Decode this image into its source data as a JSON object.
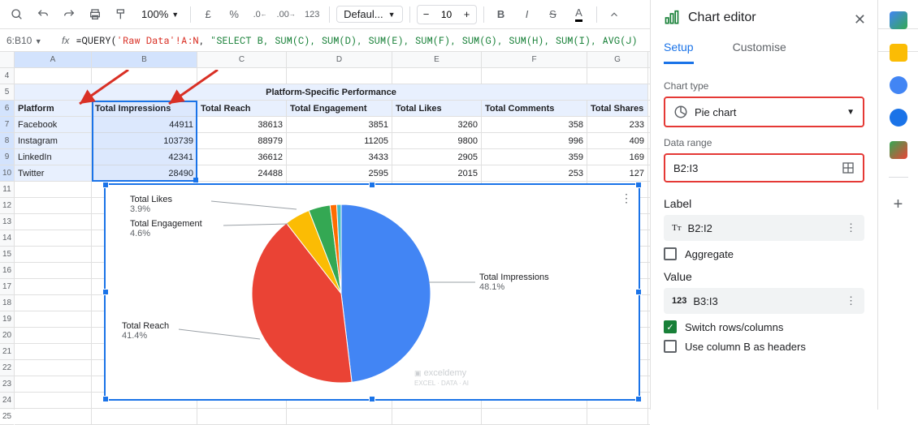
{
  "toolbar": {
    "zoom": "100%",
    "currency": "£",
    "percent": "%",
    "font": "Defaul...",
    "size": "10",
    "bold": "B",
    "italic": "I",
    "strike": "S",
    "textcolor": "A"
  },
  "fx": {
    "cell_ref": "6:B10",
    "fn": "=QUERY(",
    "ref": "'Raw Data'!A:N",
    "sep": ", ",
    "sql": "\"SELECT B, SUM(C), SUM(D), SUM(E), SUM(F), SUM(G), SUM(H), SUM(I), AVG(J)"
  },
  "cols": {
    "labels": [
      "A",
      "B",
      "C",
      "D",
      "E",
      "F",
      "G"
    ],
    "widths": [
      95,
      130,
      110,
      130,
      110,
      130,
      75
    ]
  },
  "rows": {
    "start": 4,
    "count": 22,
    "selected": [
      6,
      7,
      8,
      9,
      10
    ]
  },
  "table": {
    "title": "Platform-Specific Performance",
    "headers": [
      "Platform",
      "Total Impressions",
      "Total Reach",
      "Total Engagement",
      "Total Likes",
      "Total Comments",
      "Total Shares"
    ],
    "data": [
      [
        "Facebook",
        "44911",
        "38613",
        "3851",
        "3260",
        "358",
        "233"
      ],
      [
        "Instagram",
        "103739",
        "88979",
        "11205",
        "9800",
        "996",
        "409"
      ],
      [
        "LinkedIn",
        "42341",
        "36612",
        "3433",
        "2905",
        "359",
        "169"
      ],
      [
        "Twitter",
        "28490",
        "24488",
        "2595",
        "2015",
        "253",
        "127"
      ]
    ]
  },
  "chart": {
    "labels": {
      "likes": {
        "t": "Total Likes",
        "p": "3.9%"
      },
      "engagement": {
        "t": "Total Engagement",
        "p": "4.6%"
      },
      "impressions": {
        "t": "Total Impressions",
        "p": "48.1%"
      },
      "reach": {
        "t": "Total Reach",
        "p": "41.4%"
      }
    },
    "colors": {
      "impressions": "#4285f4",
      "reach": "#ea4335",
      "engagement": "#fbbc04",
      "likes": "#34a853",
      "comments": "#ff6d01",
      "shares": "#46bdc6"
    },
    "watermark": "exceldemy"
  },
  "editor": {
    "title": "Chart editor",
    "tabs": {
      "setup": "Setup",
      "customise": "Customise"
    },
    "chart_type_label": "Chart type",
    "chart_type": "Pie chart",
    "range_label": "Data range",
    "range": "B2:I3",
    "label_section": "Label",
    "label_val": "B2:I2",
    "aggregate": "Aggregate",
    "value_section": "Value",
    "value_val": "B3:I3",
    "switch": "Switch rows/columns",
    "col_headers": "Use column B as headers"
  }
}
